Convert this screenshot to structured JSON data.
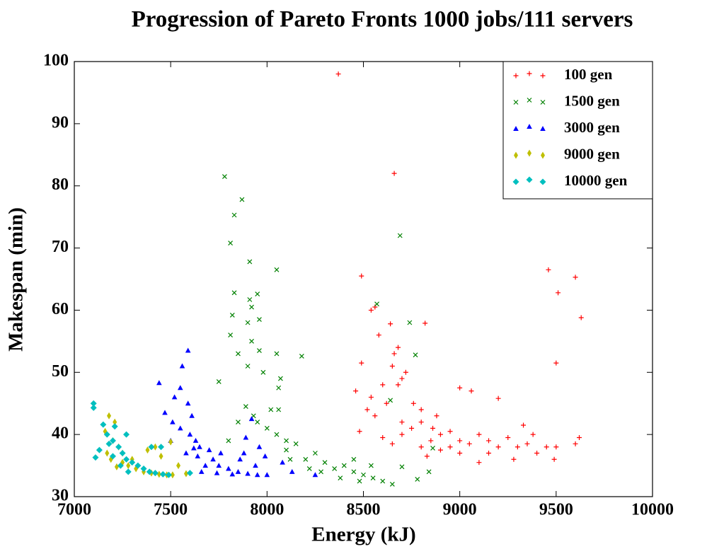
{
  "chart_data": {
    "type": "scatter",
    "title": "Progression of Pareto Fronts 1000 jobs/111 servers",
    "x_label": "Energy (kJ)",
    "y_label": "Makespan (min)",
    "xlim": [
      7000,
      10000
    ],
    "ylim": [
      30,
      100
    ],
    "xticks": [
      7000,
      7500,
      8000,
      8500,
      9000,
      9500,
      10000
    ],
    "yticks": [
      30,
      40,
      50,
      60,
      70,
      80,
      90,
      100
    ],
    "grid": false,
    "legend": "upper right",
    "series": [
      {
        "name": "100 gen",
        "color": "#ff0000",
        "marker": "+",
        "x": [
          8370,
          8660,
          8490,
          9460,
          9600,
          9510,
          9630,
          8560,
          8540,
          8640,
          8820,
          8580,
          8680,
          8660,
          8490,
          8650,
          8720,
          8700,
          8680,
          8600,
          9500,
          8460,
          8540,
          8620,
          8760,
          8800,
          8520,
          8560,
          8700,
          8800,
          8880,
          8860,
          9000,
          9060,
          9200,
          8480,
          8600,
          8650,
          8700,
          8750,
          8850,
          8900,
          8950,
          9000,
          9050,
          9100,
          9150,
          9200,
          9250,
          9300,
          9330,
          9350,
          9380,
          9400,
          9450,
          9490,
          9500,
          9600,
          9620,
          9100,
          9000,
          8900,
          8800,
          9280,
          8950,
          8830,
          9150
        ],
        "y": [
          98,
          82,
          65.5,
          66.5,
          65.3,
          62.8,
          58.8,
          60.5,
          60,
          57.8,
          57.9,
          56,
          54,
          53,
          51.5,
          51,
          50,
          49,
          48,
          48,
          51.5,
          47,
          46,
          45,
          45,
          44,
          44,
          43,
          42,
          42,
          43,
          41,
          47.5,
          47,
          45.8,
          40.5,
          39.5,
          38.5,
          40,
          41,
          39,
          40,
          40.5,
          39,
          38.5,
          40,
          39,
          38,
          39.5,
          38,
          41.5,
          38.5,
          40,
          37,
          38,
          36,
          38,
          38.5,
          39.5,
          35.5,
          37,
          37.5,
          38,
          36,
          38,
          36.5,
          37
        ]
      },
      {
        "name": "1500 gen",
        "color": "#008000",
        "marker": "x",
        "x": [
          7780,
          7870,
          7830,
          7810,
          8690,
          7910,
          8050,
          7830,
          7950,
          7910,
          8570,
          7920,
          7960,
          7820,
          7900,
          8740,
          7810,
          7920,
          7960,
          8050,
          7850,
          7900,
          7980,
          8180,
          8770,
          8070,
          7750,
          8060,
          8640,
          7890,
          7930,
          8020,
          8060,
          7850,
          7950,
          8000,
          8050,
          8100,
          7800,
          8150,
          8100,
          8200,
          8250,
          8300,
          8350,
          8400,
          8450,
          8500,
          8550,
          8600,
          8650,
          8700,
          8780,
          8840,
          8860,
          8120,
          8220,
          8380,
          8480,
          8540,
          8450,
          8280
        ],
        "y": [
          81.5,
          77.8,
          75.3,
          70.8,
          72,
          67.8,
          66.5,
          62.8,
          62.6,
          61.7,
          61,
          60.5,
          58.5,
          59.2,
          58,
          58,
          56,
          55,
          53.5,
          53,
          53,
          51,
          50,
          52.6,
          52.8,
          49,
          48.5,
          47.5,
          45.5,
          44.5,
          43,
          44,
          44,
          42,
          42,
          41,
          40,
          39,
          39,
          38.5,
          37.5,
          36,
          37,
          35.5,
          34.5,
          35,
          34,
          33.5,
          33,
          32.5,
          32,
          34.8,
          32.8,
          34,
          37.8,
          36,
          34.5,
          33,
          32.5,
          35,
          36,
          34
        ]
      },
      {
        "name": "3000 gen",
        "color": "#0000ff",
        "marker": "^",
        "x": [
          7590,
          7560,
          7440,
          7550,
          7520,
          7590,
          7470,
          7610,
          7510,
          7550,
          7600,
          7630,
          7650,
          7700,
          7720,
          7750,
          7800,
          7850,
          7900,
          7950,
          8000,
          7680,
          7640,
          7580,
          7620,
          7660,
          7740,
          7820,
          7500,
          7920,
          7890,
          7880,
          7860,
          8080,
          8130,
          8250,
          7960,
          7990,
          7940,
          7760
        ],
        "y": [
          53.5,
          51,
          48.3,
          47.5,
          46,
          45,
          43.5,
          43,
          42,
          41,
          40,
          39,
          38,
          37.5,
          36,
          35,
          34.5,
          34,
          33.7,
          33.5,
          33.5,
          35,
          36.5,
          37,
          37.8,
          34,
          33.8,
          33.6,
          39,
          42.5,
          39.5,
          37,
          36,
          35.5,
          34,
          33.5,
          38,
          36.5,
          35,
          37
        ]
      },
      {
        "name": "9000 gen",
        "color": "#bfbf00",
        "marker": "d",
        "x": [
          7180,
          7210,
          7160,
          7200,
          7230,
          7170,
          7190,
          7250,
          7280,
          7320,
          7360,
          7400,
          7440,
          7480,
          7510,
          7450,
          7500,
          7380,
          7420,
          7540,
          7580,
          7300,
          7220,
          7250
        ],
        "y": [
          43,
          42,
          40.5,
          39,
          38,
          37,
          36,
          35.5,
          35,
          34.5,
          34,
          33.8,
          33.6,
          33.5,
          33.5,
          36.5,
          38.8,
          37.5,
          38,
          35,
          33.7,
          36,
          34.8,
          37
        ]
      },
      {
        "name": "10000 gen",
        "color": "#00bfbf",
        "marker": "D",
        "x": [
          7100,
          7100,
          7150,
          7210,
          7170,
          7200,
          7130,
          7110,
          7230,
          7250,
          7270,
          7300,
          7330,
          7360,
          7390,
          7420,
          7460,
          7490,
          7200,
          7180,
          7240,
          7280,
          7400,
          7450,
          7600,
          7270
        ],
        "y": [
          45,
          44.3,
          41.6,
          41.3,
          40,
          39,
          37.5,
          36.3,
          38,
          37,
          36,
          35.5,
          35,
          34.5,
          34,
          33.8,
          33.6,
          33.5,
          36.5,
          38.5,
          35,
          34,
          38,
          38,
          33.8,
          40
        ]
      }
    ]
  }
}
